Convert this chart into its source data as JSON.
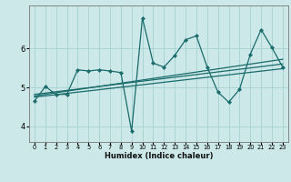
{
  "title": "",
  "xlabel": "Humidex (Indice chaleur)",
  "bg_color": "#cce8e8",
  "line_color": "#1a6b6b",
  "grid_color": "#aad4d4",
  "xlim": [
    -0.5,
    23.5
  ],
  "ylim": [
    3.6,
    7.1
  ],
  "yticks": [
    4,
    5,
    6
  ],
  "xticks": [
    0,
    1,
    2,
    3,
    4,
    5,
    6,
    7,
    8,
    9,
    10,
    11,
    12,
    13,
    14,
    15,
    16,
    17,
    18,
    19,
    20,
    21,
    22,
    23
  ],
  "line1_x": [
    0,
    1,
    2,
    3,
    4,
    5,
    6,
    7,
    8,
    9,
    10,
    11,
    12,
    13,
    14,
    15,
    16,
    17,
    18,
    19,
    20,
    21,
    22,
    23
  ],
  "line1_y": [
    4.65,
    5.02,
    4.82,
    4.82,
    5.45,
    5.42,
    5.45,
    5.42,
    5.38,
    3.88,
    6.78,
    5.62,
    5.52,
    5.82,
    6.22,
    6.32,
    5.52,
    4.88,
    4.62,
    4.95,
    5.85,
    6.48,
    6.02,
    5.52
  ],
  "line2_x": [
    0,
    23
  ],
  "line2_y": [
    4.78,
    5.72
  ],
  "line3_x": [
    0,
    23
  ],
  "line3_y": [
    4.82,
    5.6
  ],
  "line4_x": [
    0,
    23
  ],
  "line4_y": [
    4.75,
    5.48
  ]
}
